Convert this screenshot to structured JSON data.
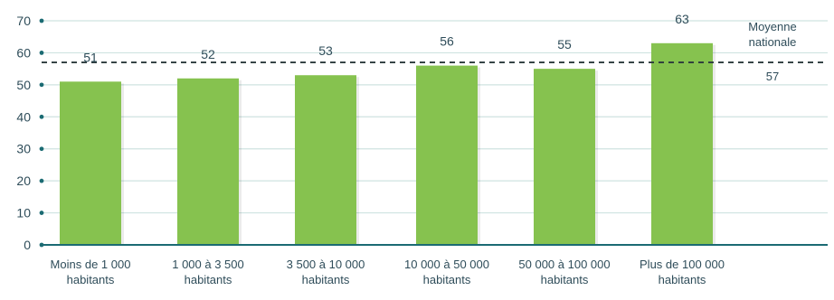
{
  "chart_data": {
    "type": "bar",
    "categories": [
      [
        "Moins de 1 000",
        "habitants"
      ],
      [
        "1 000 à 3 500",
        "habitants"
      ],
      [
        "3 500 à 10 000",
        "habitants"
      ],
      [
        "10 000 à 50 000",
        "habitants"
      ],
      [
        "50 000 à 100 000",
        "habitants"
      ],
      [
        "Plus de 100 000",
        "habitants"
      ]
    ],
    "values": [
      51,
      52,
      53,
      56,
      55,
      63
    ],
    "value_labels": [
      "51",
      "52",
      "53",
      "56",
      "55",
      "63"
    ],
    "y_ticks": [
      0,
      10,
      20,
      30,
      40,
      50,
      60,
      70
    ],
    "y_tick_labels": [
      "0",
      "10",
      "20",
      "30",
      "40",
      "50",
      "60",
      "70"
    ],
    "ylim": [
      0,
      70
    ],
    "reference_line": {
      "value": 57,
      "label_lines": [
        "Moyenne",
        "nationale"
      ],
      "value_label": "57"
    },
    "grid": true,
    "colors": {
      "bar": "#86c24f",
      "grid": "#cfe3e1",
      "axis": "#1b6b73",
      "text": "#2f4d5a",
      "reference": "#2b3a3c"
    }
  }
}
